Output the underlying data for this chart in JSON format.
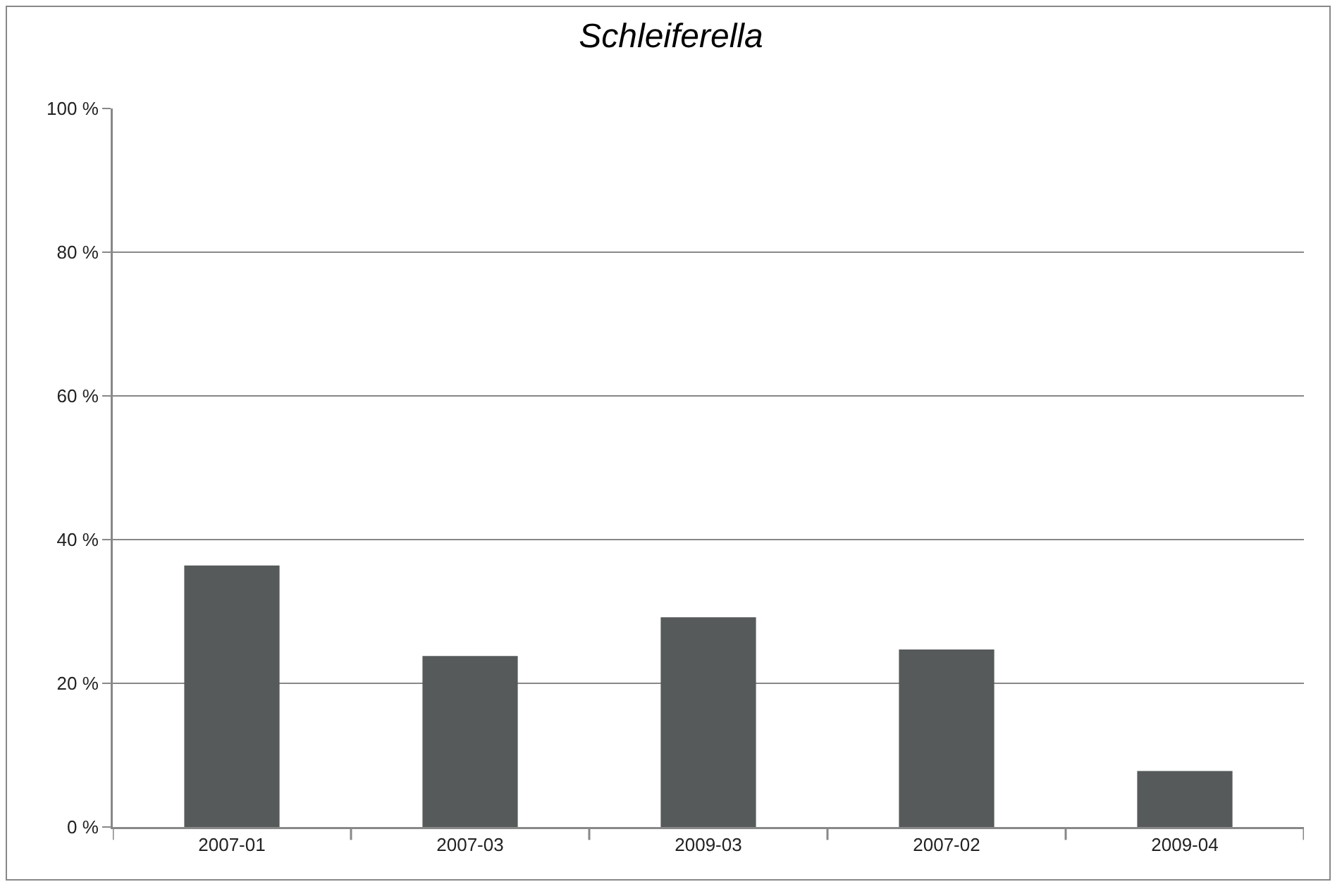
{
  "chart_data": {
    "type": "bar",
    "title": "Schleiferella",
    "categories": [
      "2007-01",
      "2007-03",
      "2009-03",
      "2007-02",
      "2009-04"
    ],
    "values": [
      36.4,
      23.8,
      29.2,
      24.7,
      7.8
    ],
    "color": "#575a5b",
    "ylim": [
      0,
      100
    ],
    "yticks": [
      {
        "value": 0,
        "label": "0 %"
      },
      {
        "value": 20,
        "label": "20 %"
      },
      {
        "value": 40,
        "label": "40 %"
      },
      {
        "value": 60,
        "label": "60 %"
      },
      {
        "value": 80,
        "label": "80 %"
      },
      {
        "value": 100,
        "label": "100 %"
      }
    ],
    "grid": "y"
  }
}
